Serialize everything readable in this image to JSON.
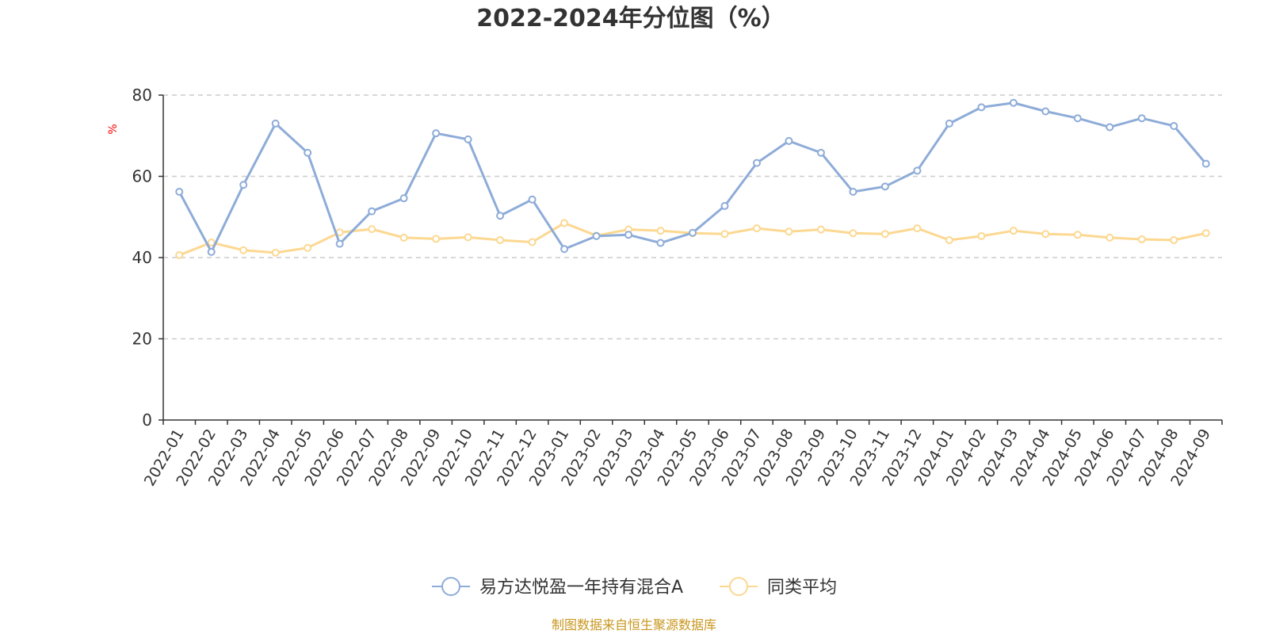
{
  "chart_data": {
    "type": "line",
    "title": "2022-2024年分位图（%）",
    "ylabel": "%",
    "ylim": [
      0,
      80
    ],
    "yticks": [
      "0",
      "20",
      "40",
      "60",
      "80"
    ],
    "grid": true,
    "legend_position": "bottom",
    "categories": [
      "2022-01",
      "2022-02",
      "2022-03",
      "2022-04",
      "2022-05",
      "2022-06",
      "2022-07",
      "2022-08",
      "2022-09",
      "2022-10",
      "2022-11",
      "2022-12",
      "2023-01",
      "2023-02",
      "2023-03",
      "2023-04",
      "2023-05",
      "2023-06",
      "2023-07",
      "2023-08",
      "2023-09",
      "2023-10",
      "2023-11",
      "2023-12",
      "2024-01",
      "2024-02",
      "2024-03",
      "2024-04",
      "2024-05",
      "2024-06",
      "2024-07",
      "2024-08",
      "2024-09"
    ],
    "series": [
      {
        "name": "易方达悦盈一年持有混合A",
        "color": "#8eacd8",
        "values": [
          56.2,
          41.4,
          57.9,
          73.0,
          65.8,
          43.4,
          51.4,
          54.6,
          70.6,
          69.1,
          50.3,
          54.3,
          42.1,
          45.3,
          45.6,
          43.6,
          46.1,
          52.7,
          63.3,
          68.7,
          65.8,
          56.2,
          57.5,
          61.4,
          73.0,
          77.0,
          78.1,
          76.0,
          74.3,
          72.1,
          74.3,
          72.4,
          63.1
        ]
      },
      {
        "name": "同类平均",
        "color": "#fcd891",
        "values": [
          40.6,
          43.7,
          41.8,
          41.2,
          42.4,
          46.2,
          47.0,
          44.9,
          44.6,
          45.0,
          44.3,
          43.8,
          48.5,
          45.4,
          46.9,
          46.6,
          46.0,
          45.8,
          47.2,
          46.4,
          46.9,
          46.0,
          45.8,
          47.2,
          44.3,
          45.3,
          46.6,
          45.8,
          45.6,
          44.9,
          44.5,
          44.3,
          46.0
        ]
      }
    ]
  },
  "source_note": "制图数据来自恒生聚源数据库"
}
